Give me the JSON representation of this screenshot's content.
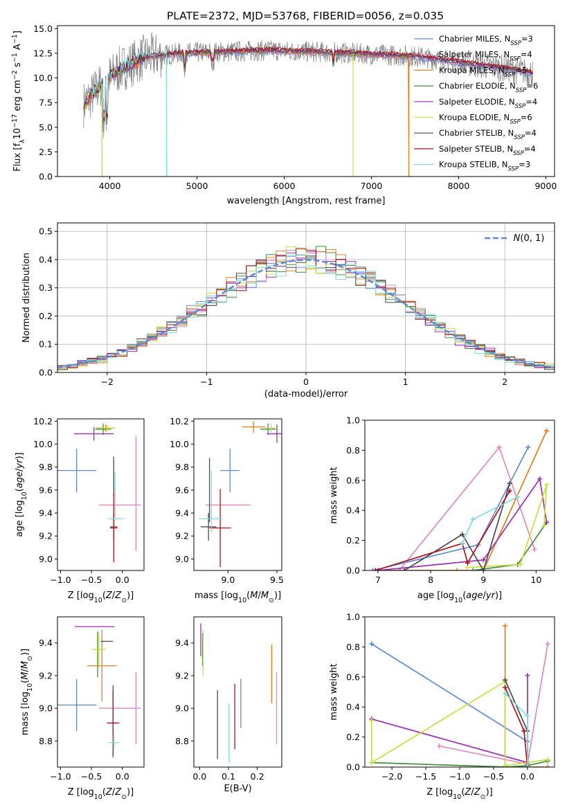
{
  "figure": {
    "title": "PLATE=2372, MJD=53768, FIBERID=0056, z=0.035"
  },
  "colors": [
    "#5b8bd9",
    "#e088bd",
    "#e97c19",
    "#3e8f3e",
    "#9c2eb6",
    "#c6e03e",
    "#4a4a4a",
    "#b0121a",
    "#7fdde0"
  ],
  "series_names": [
    "Chabrier MILES, N_SSP=3",
    "Salpeter MILES, N_SSP=4",
    "Kroupa MILES, N_SSP=5",
    "Chabrier ELODIE, N_SSP=6",
    "Salpeter ELODIE, N_SSP=4",
    "Kroupa ELODIE, N_SSP=6",
    "Chabrier STELIB, N_SSP=4",
    "Salpeter STELIB, N_SSP=4",
    "Kroupa STELIB, N_SSP=3"
  ],
  "legend_entries": [
    {
      "prefix": "Chabrier MILES, N",
      "sub": "SSP",
      "suffix": "=3"
    },
    {
      "prefix": "Salpeter MILES, N",
      "sub": "SSP",
      "suffix": "=4"
    },
    {
      "prefix": "Kroupa MILES, N",
      "sub": "SSP",
      "suffix": "=5"
    },
    {
      "prefix": "Chabrier ELODIE, N",
      "sub": "SSP",
      "suffix": "=6"
    },
    {
      "prefix": "Salpeter ELODIE, N",
      "sub": "SSP",
      "suffix": "=4"
    },
    {
      "prefix": "Kroupa ELODIE, N",
      "sub": "SSP",
      "suffix": "=6"
    },
    {
      "prefix": "Chabrier STELIB, N",
      "sub": "SSP",
      "suffix": "=4"
    },
    {
      "prefix": "Salpeter STELIB, N",
      "sub": "SSP",
      "suffix": "=4"
    },
    {
      "prefix": "Kroupa STELIB, N",
      "sub": "SSP",
      "suffix": "=3"
    }
  ],
  "chart_data": [
    {
      "id": "spectrum",
      "type": "line",
      "xlabel": "wavelength [Angstrom, rest frame]",
      "ylabel": "Flux [f_λ 10^-17 erg cm^-2 s^-1 A^-1]",
      "xlim": [
        3400,
        9100
      ],
      "ylim": [
        0,
        15.3
      ],
      "xticks": [
        4000,
        5000,
        6000,
        7000,
        8000,
        9000
      ],
      "yticks": [
        0.0,
        2.5,
        5.0,
        7.5,
        10.0,
        12.5,
        15.0
      ],
      "data_range": [
        3700,
        8850
      ],
      "continuum_knots": [
        [
          3700,
          7.3
        ],
        [
          3900,
          9.3
        ],
        [
          4100,
          10.8
        ],
        [
          4400,
          12.1
        ],
        [
          4800,
          12.5
        ],
        [
          5200,
          12.6
        ],
        [
          5800,
          12.8
        ],
        [
          6500,
          12.6
        ],
        [
          7000,
          12.4
        ],
        [
          7500,
          12.2
        ],
        [
          8000,
          11.6
        ],
        [
          8500,
          11.0
        ],
        [
          8850,
          10.5
        ]
      ],
      "dropouts": [
        {
          "series": 5,
          "x": 3910,
          "min": 0
        },
        {
          "series": 8,
          "x": 4650,
          "min": 0
        },
        {
          "series": 5,
          "x": 6790,
          "min": 0
        },
        {
          "series": 2,
          "x": 7430,
          "min": 0
        }
      ],
      "grid": false,
      "legend": "upper right"
    },
    {
      "id": "residuals",
      "type": "line",
      "xlabel": "(data-model)/error",
      "ylabel": "Normed distribution",
      "xlim": [
        -2.5,
        2.5
      ],
      "ylim": [
        0,
        0.53
      ],
      "xticks": [
        -2,
        -1,
        0,
        1,
        2
      ],
      "yticks": [
        0.0,
        0.1,
        0.2,
        0.3,
        0.4,
        0.5
      ],
      "gaussian_label": "N(0,1)",
      "bin_width": 0.1,
      "grid": true,
      "legend": "upper right"
    },
    {
      "id": "z_age",
      "type": "scatter",
      "xlabel": "Z [log10(Z/Z⊙)]",
      "ylabel": "age [log10(age/yr)]",
      "xlim": [
        -1.05,
        0.35
      ],
      "ylim": [
        8.9,
        10.22
      ],
      "xticks": [
        -1.0,
        -0.5,
        0.0
      ],
      "yticks": [
        9.0,
        9.2,
        9.4,
        9.6,
        9.8,
        10.0,
        10.2
      ],
      "points": [
        {
          "s": 0,
          "x": -0.74,
          "y": 9.77,
          "xe": 0.32,
          "ye": 0.19
        },
        {
          "s": 1,
          "x": -0.04,
          "y": 9.47,
          "xe": 0.34,
          "ye": 0.0
        },
        {
          "s": 1,
          "x": 0.22,
          "y": 9.57,
          "xe": 0.0,
          "ye": 0.5
        },
        {
          "s": 2,
          "x": -0.27,
          "y": 10.14,
          "xe": 0.15,
          "ye": 0.03
        },
        {
          "s": 3,
          "x": -0.31,
          "y": 10.13,
          "xe": 0.13,
          "ye": 0.05
        },
        {
          "s": 4,
          "x": -0.46,
          "y": 10.09,
          "xe": 0.32,
          "ye": 0.06
        },
        {
          "s": 5,
          "x": -0.25,
          "y": 10.14,
          "xe": 0.12,
          "ye": 0.03
        },
        {
          "s": 6,
          "x": -0.14,
          "y": 9.28,
          "xe": 0.06,
          "ye": 0.12
        },
        {
          "s": 6,
          "x": -0.14,
          "y": 9.72,
          "xe": 0.0,
          "ye": 0.17
        },
        {
          "s": 7,
          "x": -0.14,
          "y": 9.27,
          "xe": 0.06,
          "ye": 0.3
        },
        {
          "s": 8,
          "x": -0.1,
          "y": 9.35,
          "xe": 0.13,
          "ye": 0.0
        },
        {
          "s": 8,
          "x": -0.12,
          "y": 9.56,
          "xe": 0.0,
          "ye": 0.2
        }
      ]
    },
    {
      "id": "mass_age",
      "type": "scatter",
      "xlabel": "mass [log10(M/M⊙)]",
      "ylabel": "",
      "xlim": [
        8.65,
        9.55
      ],
      "ylim": [
        8.9,
        10.22
      ],
      "xticks": [
        9.0,
        9.5
      ],
      "yticks": [
        9.0,
        9.2,
        9.4,
        9.6,
        9.8,
        10.0,
        10.2
      ],
      "points": [
        {
          "s": 0,
          "x": 9.02,
          "y": 9.77,
          "xe": 0.1,
          "ye": 0.19
        },
        {
          "s": 1,
          "x": 9.0,
          "y": 9.47,
          "xe": 0.23,
          "ye": 0.0
        },
        {
          "s": 2,
          "x": 9.26,
          "y": 10.15,
          "xe": 0.12,
          "ye": 0.05
        },
        {
          "s": 3,
          "x": 9.41,
          "y": 10.13,
          "xe": 0.08,
          "ye": 0.05
        },
        {
          "s": 4,
          "x": 9.5,
          "y": 10.09,
          "xe": 0.1,
          "ye": 0.08
        },
        {
          "s": 5,
          "x": 9.44,
          "y": 10.14,
          "xe": 0.06,
          "ye": 0.04
        },
        {
          "s": 6,
          "x": 8.8,
          "y": 9.28,
          "xe": 0.08,
          "ye": 0.12
        },
        {
          "s": 6,
          "x": 8.81,
          "y": 9.6,
          "xe": 0.0,
          "ye": 0.28
        },
        {
          "s": 7,
          "x": 8.92,
          "y": 9.27,
          "xe": 0.11,
          "ye": 0.34
        },
        {
          "s": 8,
          "x": 8.82,
          "y": 9.35,
          "xe": 0.12,
          "ye": 0.0
        },
        {
          "s": 8,
          "x": 8.83,
          "y": 9.5,
          "xe": 0.0,
          "ye": 0.27
        }
      ]
    },
    {
      "id": "age_weight",
      "type": "line",
      "xlabel": "age [log10(age/yr)]",
      "ylabel": "mass weight",
      "xlim": [
        6.75,
        10.35
      ],
      "ylim": [
        0,
        1.0
      ],
      "xticks": [
        7,
        8,
        9,
        10
      ],
      "yticks": [
        0.0,
        0.2,
        0.4,
        0.6,
        0.8,
        1.0
      ],
      "series": [
        {
          "s": 0,
          "points": [
            [
              6.9,
              0.0
            ],
            [
              8.9,
              0.17
            ],
            [
              9.85,
              0.82
            ]
          ]
        },
        {
          "s": 1,
          "points": [
            [
              7.4,
              0.0
            ],
            [
              9.3,
              0.82
            ],
            [
              9.97,
              0.14
            ]
          ]
        },
        {
          "s": 2,
          "points": [
            [
              6.95,
              0.0
            ],
            [
              8.5,
              0.0
            ],
            [
              9.0,
              0.0
            ],
            [
              10.2,
              0.93
            ]
          ]
        },
        {
          "s": 3,
          "points": [
            [
              8.8,
              0.0
            ],
            [
              9.65,
              0.04
            ],
            [
              10.2,
              0.32
            ]
          ]
        },
        {
          "s": 4,
          "points": [
            [
              7.0,
              0.0
            ],
            [
              9.0,
              0.07
            ],
            [
              10.07,
              0.61
            ],
            [
              10.2,
              0.32
            ]
          ]
        },
        {
          "s": 5,
          "points": [
            [
              8.7,
              0.02
            ],
            [
              9.7,
              0.04
            ],
            [
              10.2,
              0.57
            ],
            [
              10.15,
              0.3
            ]
          ]
        },
        {
          "s": 6,
          "points": [
            [
              7.5,
              0.0
            ],
            [
              8.6,
              0.24
            ],
            [
              9.0,
              0.0
            ],
            [
              9.5,
              0.58
            ]
          ]
        },
        {
          "s": 7,
          "points": [
            [
              6.95,
              0.0
            ],
            [
              8.6,
              0.18
            ],
            [
              8.7,
              0.05
            ],
            [
              9.5,
              0.53
            ]
          ]
        },
        {
          "s": 8,
          "points": [
            [
              8.6,
              0.18
            ],
            [
              8.8,
              0.34
            ],
            [
              9.65,
              0.49
            ]
          ]
        }
      ]
    },
    {
      "id": "z_mass",
      "type": "scatter",
      "xlabel": "Z [log10(Z/Z⊙)]",
      "ylabel": "mass [log10(M/M⊙)]",
      "xlim": [
        -1.05,
        0.35
      ],
      "ylim": [
        8.64,
        9.56
      ],
      "xticks": [
        -1.0,
        -0.5,
        0.0
      ],
      "yticks": [
        8.8,
        9.0,
        9.2,
        9.4
      ],
      "points": [
        {
          "s": 0,
          "x": -0.74,
          "y": 9.02,
          "xe": 0.32,
          "ye": 0.16
        },
        {
          "s": 1,
          "x": -0.04,
          "y": 9.0,
          "xe": 0.34,
          "ye": 0.0
        },
        {
          "s": 1,
          "x": 0.22,
          "y": 9.0,
          "xe": 0.0,
          "ye": 0.22
        },
        {
          "s": 2,
          "x": -0.33,
          "y": 9.26,
          "xe": 0.24,
          "ye": 0.22
        },
        {
          "s": 3,
          "x": -0.4,
          "y": 9.33,
          "xe": 0.0,
          "ye": 0.14
        },
        {
          "s": 4,
          "x": -0.45,
          "y": 9.5,
          "xe": 0.32,
          "ye": 0.0
        },
        {
          "s": 5,
          "x": -0.38,
          "y": 9.36,
          "xe": 0.11,
          "ye": 0.1
        },
        {
          "s": 6,
          "x": -0.25,
          "y": 9.41,
          "xe": 0.1,
          "ye": 0.0
        },
        {
          "s": 6,
          "x": -0.15,
          "y": 8.92,
          "xe": 0.0,
          "ye": 0.22
        },
        {
          "s": 7,
          "x": -0.15,
          "y": 8.91,
          "xe": 0.1,
          "ye": 0.2
        },
        {
          "s": 8,
          "x": -0.14,
          "y": 8.79,
          "xe": 0.09,
          "ye": 0.05
        }
      ]
    },
    {
      "id": "ebv_mass",
      "type": "scatter",
      "xlabel": "E(B-V)",
      "ylabel": "",
      "xlim": [
        -0.02,
        0.285
      ],
      "ylim": [
        8.64,
        9.56
      ],
      "xticks": [
        0.0,
        0.1,
        0.2
      ],
      "yticks": [
        8.8,
        9.0,
        9.2,
        9.4
      ],
      "points": [
        {
          "s": 0,
          "x": 0.143,
          "y": 9.03,
          "ye": 0.15
        },
        {
          "s": 1,
          "x": 0.267,
          "y": 9.0,
          "ye": 0.22
        },
        {
          "s": 2,
          "x": 0.25,
          "y": 9.21,
          "ye": 0.18
        },
        {
          "s": 3,
          "x": 0.01,
          "y": 9.36,
          "ye": 0.1
        },
        {
          "s": 4,
          "x": 0.004,
          "y": 9.42,
          "ye": 0.1
        },
        {
          "s": 5,
          "x": 0.012,
          "y": 9.34,
          "ye": 0.14
        },
        {
          "s": 6,
          "x": 0.062,
          "y": 8.9,
          "ye": 0.21
        },
        {
          "s": 7,
          "x": 0.122,
          "y": 8.95,
          "ye": 0.2
        },
        {
          "s": 8,
          "x": 0.102,
          "y": 8.85,
          "ye": 0.18
        }
      ]
    },
    {
      "id": "z_weight",
      "type": "line",
      "xlabel": "Z [log10(Z/Z⊙)]",
      "ylabel": "mass weight",
      "xlim": [
        -2.4,
        0.4
      ],
      "ylim": [
        0,
        1.0
      ],
      "xticks": [
        -2.0,
        -1.5,
        -1.0,
        -0.5,
        0.0
      ],
      "yticks": [
        0.0,
        0.2,
        0.4,
        0.6,
        0.8,
        1.0
      ],
      "series": [
        {
          "s": 0,
          "points": [
            [
              -2.3,
              0.82
            ],
            [
              0.0,
              0.17
            ]
          ]
        },
        {
          "s": 1,
          "points": [
            [
              -1.3,
              0.14
            ],
            [
              0.0,
              0.02
            ],
            [
              0.3,
              0.82
            ]
          ]
        },
        {
          "s": 2,
          "points": [
            [
              -0.33,
              0.94
            ],
            [
              -0.33,
              0.0
            ],
            [
              0.0,
              0.0
            ],
            [
              0.3,
              0.0
            ]
          ]
        },
        {
          "s": 3,
          "points": [
            [
              -2.3,
              0.03
            ],
            [
              -0.3,
              0.0
            ],
            [
              0.0,
              0.01
            ],
            [
              0.3,
              0.04
            ]
          ]
        },
        {
          "s": 4,
          "points": [
            [
              -2.3,
              0.32
            ],
            [
              0.0,
              0.03
            ],
            [
              0.0,
              0.61
            ]
          ]
        },
        {
          "s": 5,
          "points": [
            [
              -2.3,
              0.31
            ],
            [
              -2.3,
              0.03
            ],
            [
              -0.33,
              0.57
            ],
            [
              -0.33,
              0.01
            ],
            [
              0.3,
              0.05
            ]
          ]
        },
        {
          "s": 6,
          "points": [
            [
              -0.33,
              0.58
            ],
            [
              0.0,
              0.24
            ],
            [
              0.0,
              0.0
            ]
          ]
        },
        {
          "s": 7,
          "points": [
            [
              -0.33,
              0.53
            ],
            [
              -0.05,
              0.24
            ],
            [
              0.0,
              0.0
            ]
          ]
        },
        {
          "s": 8,
          "points": [
            [
              -0.33,
              0.49
            ],
            [
              0.0,
              0.34
            ],
            [
              0.0,
              0.0
            ]
          ]
        }
      ]
    }
  ]
}
